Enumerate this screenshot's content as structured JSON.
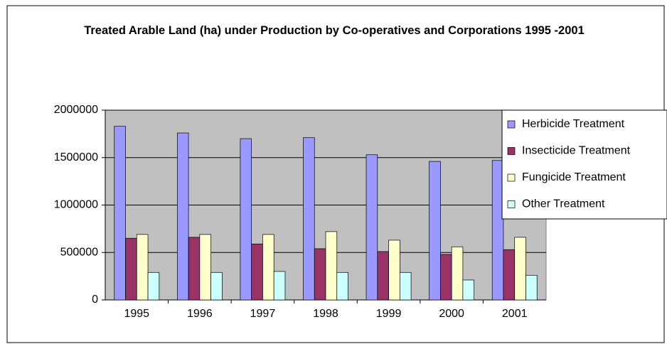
{
  "chart_data": {
    "type": "bar",
    "title": "Treated Arable Land (ha) under Production by Co-operatives and Corporations 1995 -2001",
    "categories": [
      "1995",
      "1996",
      "1997",
      "1998",
      "1999",
      "2000",
      "2001"
    ],
    "series": [
      {
        "name": "Herbicide Treatment",
        "color": "#9999ff",
        "values": [
          1830000,
          1760000,
          1700000,
          1710000,
          1530000,
          1460000,
          1470000
        ]
      },
      {
        "name": "Insecticide Treatment",
        "color": "#993366",
        "values": [
          650000,
          660000,
          590000,
          540000,
          510000,
          480000,
          530000
        ]
      },
      {
        "name": "Fungicide Treatment",
        "color": "#ffffcc",
        "values": [
          690000,
          690000,
          690000,
          720000,
          630000,
          560000,
          660000
        ]
      },
      {
        "name": "Other Treatment",
        "color": "#ccffff",
        "values": [
          290000,
          290000,
          300000,
          290000,
          290000,
          210000,
          260000
        ]
      }
    ],
    "ylim": [
      0,
      2000000
    ],
    "yticks": [
      0,
      500000,
      1000000,
      1500000,
      2000000
    ],
    "grid": true,
    "legend": "right"
  }
}
